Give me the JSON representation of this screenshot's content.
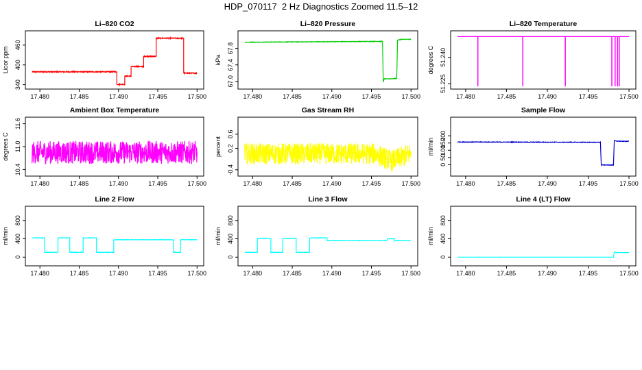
{
  "page": {
    "title": "HDP_070117  2 Hz Diagnostics Zoomed 11.5–12"
  },
  "chart_data": [
    {
      "type": "line",
      "title": "Li–820 CO2",
      "ylabel": "Licor ppm",
      "color": "#ff0000",
      "xlim": [
        17.4785,
        17.5005
      ],
      "ylim": [
        335,
        495
      ],
      "x_ticks": [
        "17.480",
        "17.485",
        "17.490",
        "17.495",
        "17.500"
      ],
      "y_ticks": [
        340,
        400,
        460
      ],
      "noise": 1.5,
      "x": [
        17.479,
        17.4898,
        17.4898,
        17.4908,
        17.4908,
        17.4916,
        17.4916,
        17.4932,
        17.4932,
        17.4948,
        17.4948,
        17.4983,
        17.4983,
        17.5
      ],
      "y": [
        379,
        379,
        341,
        341,
        366,
        366,
        395,
        395,
        426,
        426,
        481,
        481,
        375,
        375
      ]
    },
    {
      "type": "line",
      "title": "Li–820 Pressure",
      "ylabel": "kPa",
      "color": "#00cc00",
      "xlim": [
        17.4785,
        17.5005
      ],
      "ylim": [
        66.88,
        68.16
      ],
      "x_ticks": [
        "17.480",
        "17.485",
        "17.490",
        "17.495",
        "17.500"
      ],
      "y_ticks": [
        "67.0",
        "67.4",
        "67.8"
      ],
      "noise": 0.006,
      "x": [
        17.479,
        17.4955,
        17.4964,
        17.4965,
        17.4966,
        17.4969,
        17.4982,
        17.4983,
        17.4988,
        17.5
      ],
      "y": [
        67.95,
        67.97,
        67.97,
        66.98,
        67.06,
        67.06,
        67.07,
        68.0,
        68.02,
        68.02
      ]
    },
    {
      "type": "line",
      "title": "Li–820 Temperature",
      "ylabel": "degrees C",
      "color": "#ff00ff",
      "xlim": [
        17.4785,
        17.5005
      ],
      "ylim": [
        51.2235,
        51.2535
      ],
      "x_ticks": [
        "17.480",
        "17.485",
        "17.490",
        "17.495",
        "17.500"
      ],
      "y_ticks": [
        "51.225",
        "51.240"
      ],
      "noise": 0,
      "x": [
        17.479,
        17.5
      ],
      "y": [
        51.2518,
        51.2518
      ],
      "spikes": [
        17.4815,
        17.487,
        17.4922,
        17.4979,
        17.4983,
        17.4986,
        17.4988
      ],
      "spike_low": 51.2235
    },
    {
      "type": "line",
      "title": "Ambient Box Temperature",
      "ylabel": "degrees C",
      "color": "#ff00ff",
      "xlim": [
        17.4785,
        17.5005
      ],
      "ylim": [
        10.3,
        11.7
      ],
      "x_ticks": [
        "17.480",
        "17.485",
        "17.490",
        "17.495",
        "17.500"
      ],
      "y_ticks": [
        "10.4",
        "11.0",
        "11.6"
      ],
      "noise": 0.3,
      "x": [
        17.479,
        17.5
      ],
      "y": [
        10.85,
        10.85
      ]
    },
    {
      "type": "line",
      "title": "Gas Stream RH",
      "ylabel": "percent",
      "color": "#ffff00",
      "xlim": [
        17.4785,
        17.5005
      ],
      "ylim": [
        -0.5,
        1.0
      ],
      "x_ticks": [
        "17.480",
        "17.485",
        "17.490",
        "17.495",
        "17.500"
      ],
      "y_ticks": [
        "-0.4",
        "0.2",
        "0.6"
      ],
      "noise": 0.3,
      "x": [
        17.479,
        17.4955,
        17.4975,
        17.5
      ],
      "y": [
        0.05,
        0.05,
        -0.15,
        0.05
      ]
    },
    {
      "type": "line",
      "title": "Sample Flow",
      "ylabel": "ml/min",
      "color": "#0000cc",
      "xlim": [
        17.4785,
        17.5005
      ],
      "ylim": [
        -60,
        310
      ],
      "x_ticks": [
        "17.480",
        "17.485",
        "17.490",
        "17.495",
        "17.500"
      ],
      "y_ticks": [
        0,
        50,
        100,
        150,
        200
      ],
      "noise": 2,
      "x": [
        17.479,
        17.4965,
        17.4966,
        17.4981,
        17.4982,
        17.499,
        17.5
      ],
      "y": [
        157,
        155,
        -2,
        -2,
        165,
        162,
        162
      ]
    },
    {
      "type": "line",
      "title": "Line 2 Flow",
      "ylabel": "ml/min",
      "color": "#00ffff",
      "xlim": [
        17.4785,
        17.5005
      ],
      "ylim": [
        -130,
        1050
      ],
      "x_ticks": [
        "17.480",
        "17.485",
        "17.490",
        "17.495",
        "17.500"
      ],
      "y_ticks": [
        0,
        400,
        800
      ],
      "noise": 4,
      "x": [
        17.479,
        17.4806,
        17.4806,
        17.4823,
        17.4823,
        17.4838,
        17.4838,
        17.4855,
        17.4855,
        17.4872,
        17.4872,
        17.4887,
        17.4887,
        17.4894,
        17.4894,
        17.497,
        17.497,
        17.4979,
        17.4979,
        17.5
      ],
      "y": [
        420,
        420,
        105,
        105,
        420,
        420,
        105,
        105,
        420,
        420,
        105,
        105,
        105,
        105,
        380,
        380,
        105,
        105,
        380,
        380
      ]
    },
    {
      "type": "line",
      "title": "Line 3 Flow",
      "ylabel": "ml/min",
      "color": "#00ffff",
      "xlim": [
        17.4785,
        17.5005
      ],
      "ylim": [
        -130,
        1050
      ],
      "x_ticks": [
        "17.480",
        "17.485",
        "17.490",
        "17.495",
        "17.500"
      ],
      "y_ticks": [
        0,
        400,
        800
      ],
      "noise": 4,
      "x": [
        17.479,
        17.4806,
        17.4806,
        17.4823,
        17.4823,
        17.4838,
        17.4838,
        17.4855,
        17.4855,
        17.4872,
        17.4872,
        17.4887,
        17.4887,
        17.4894,
        17.4894,
        17.497,
        17.497,
        17.4979,
        17.4979,
        17.5
      ],
      "y": [
        105,
        105,
        410,
        410,
        105,
        105,
        410,
        410,
        105,
        105,
        420,
        420,
        420,
        420,
        360,
        360,
        400,
        400,
        360,
        360
      ]
    },
    {
      "type": "line",
      "title": "Line 4 (LT) Flow",
      "ylabel": "ml/min",
      "color": "#00ffff",
      "xlim": [
        17.4785,
        17.5005
      ],
      "ylim": [
        -130,
        1050
      ],
      "x_ticks": [
        "17.480",
        "17.485",
        "17.490",
        "17.495",
        "17.500"
      ],
      "y_ticks": [
        0,
        400,
        800
      ],
      "noise": 1,
      "x": [
        17.479,
        17.4981,
        17.4982,
        17.4985,
        17.5
      ],
      "y": [
        0,
        0,
        110,
        100,
        100
      ]
    }
  ]
}
